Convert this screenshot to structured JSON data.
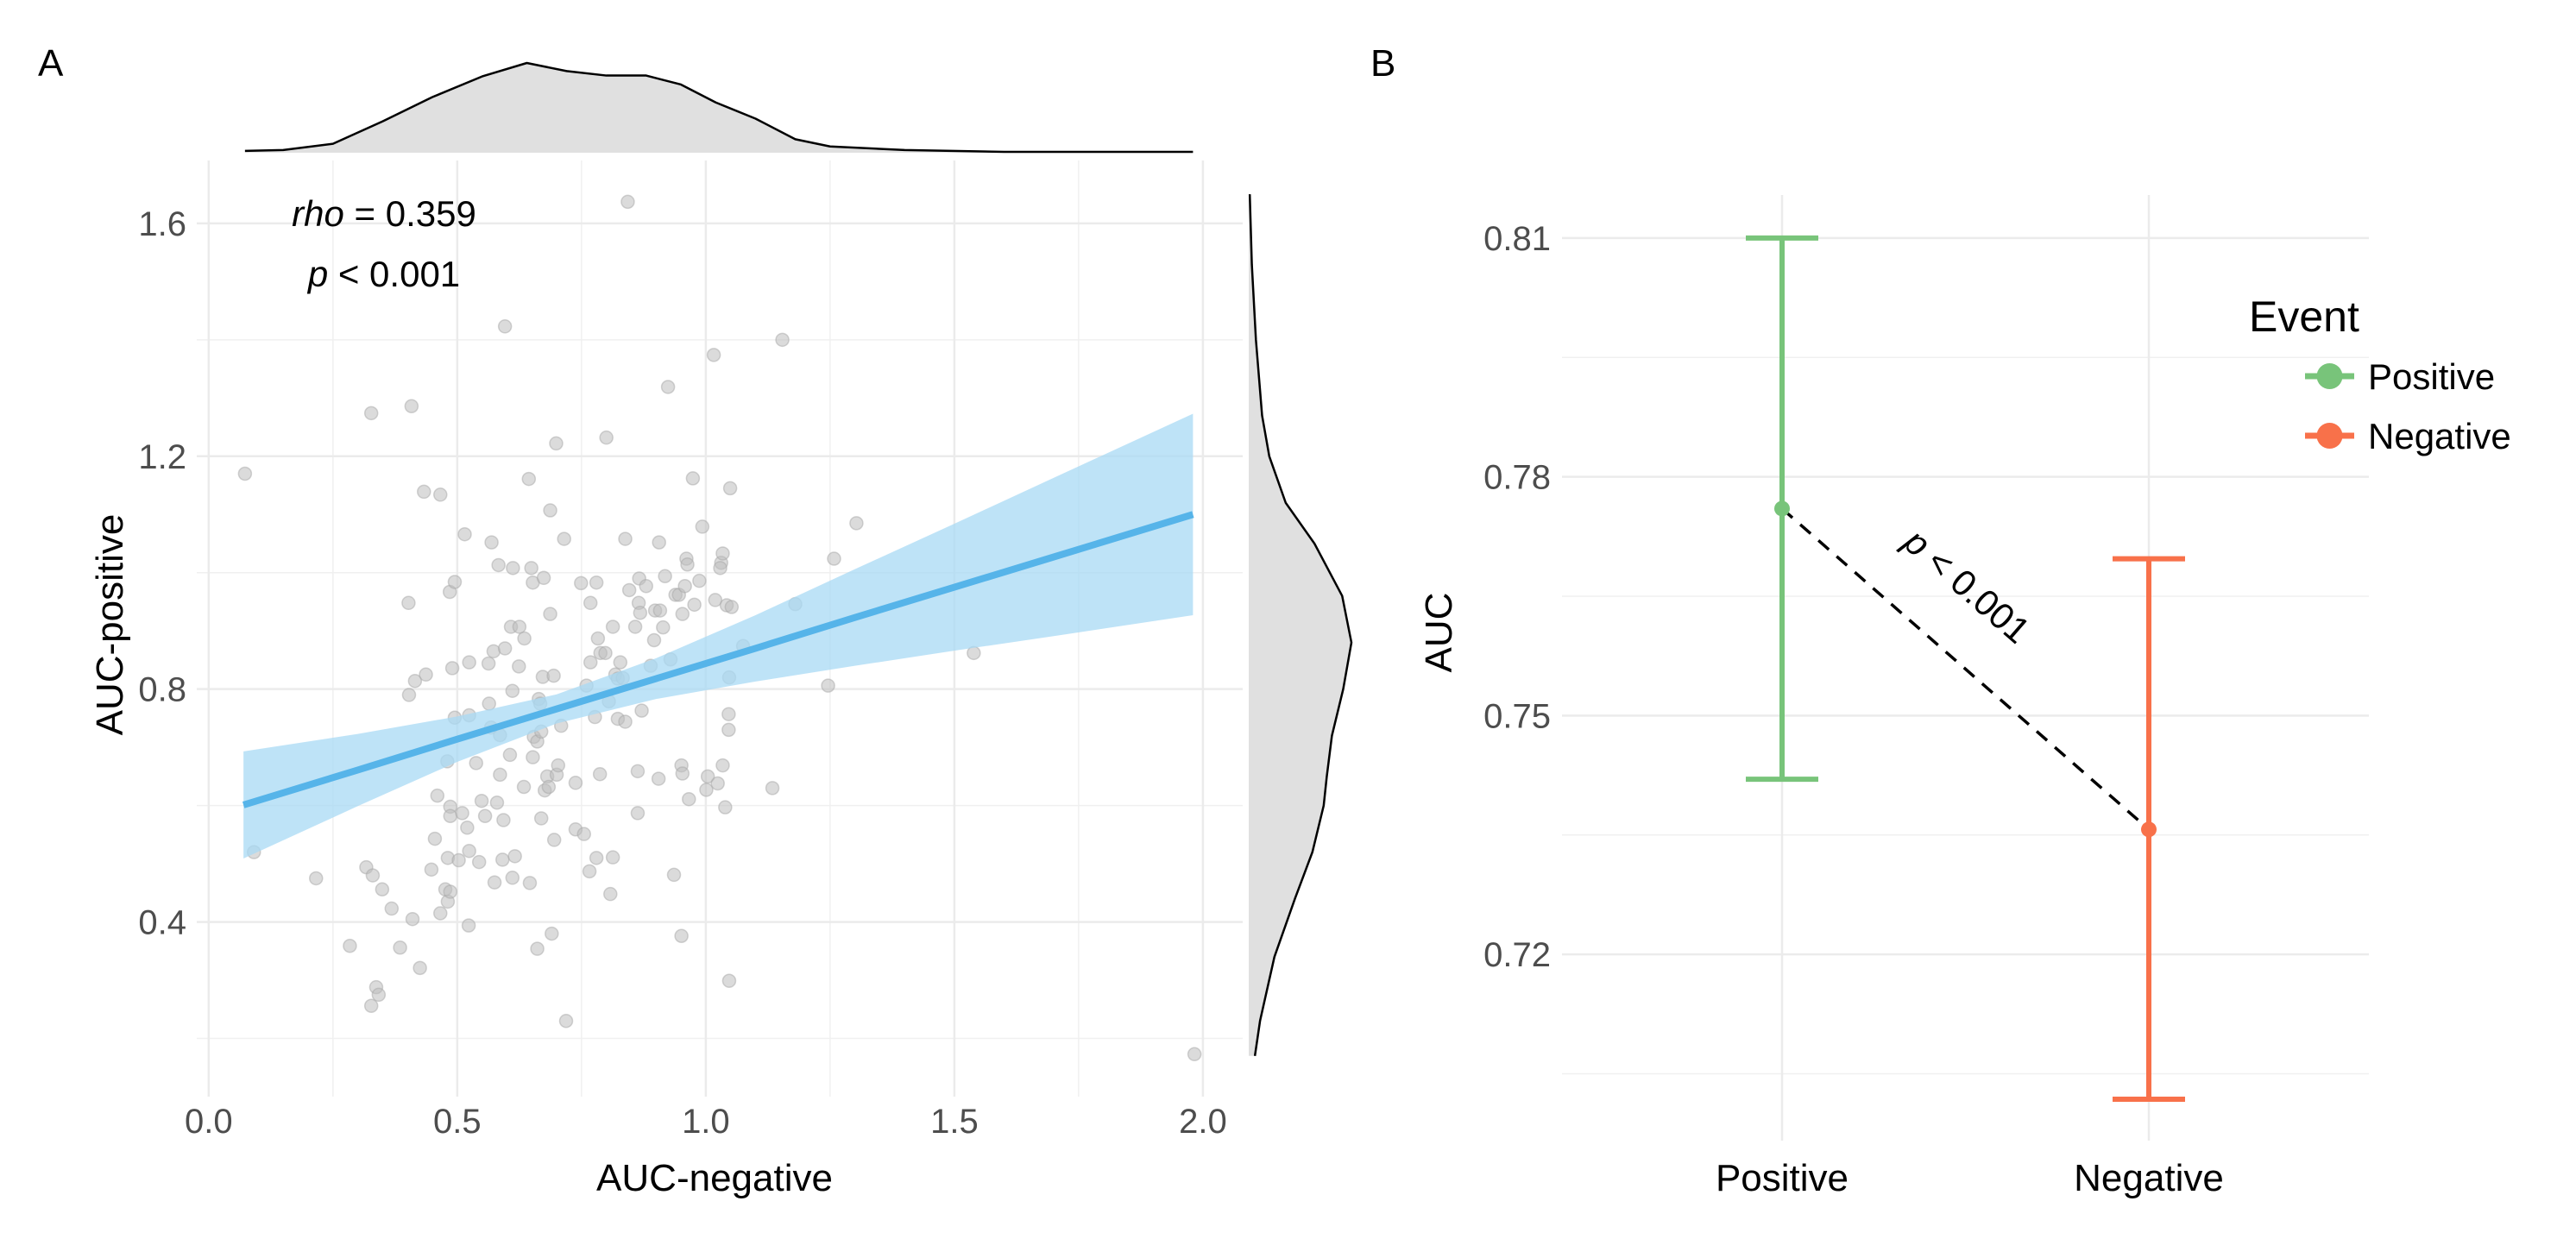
{
  "panels": {
    "a_label": "A",
    "b_label": "B"
  },
  "chart_data": [
    {
      "type": "scatter",
      "panel": "A",
      "xlabel": "AUC-negative",
      "ylabel": "AUC-positive",
      "xlim": [
        -0.024,
        2.08
      ],
      "ylim": [
        0.1,
        1.708
      ],
      "grid": true,
      "x_ticks": [
        0,
        0.5,
        1.0,
        1.5,
        2.0
      ],
      "x_tick_labels": [
        "0.0",
        "0.5",
        "1.0",
        "1.5",
        "2.0"
      ],
      "x_minor": [
        0.25,
        0.75,
        1.25,
        1.75
      ],
      "y_ticks": [
        0.4,
        0.8,
        1.2,
        1.6
      ],
      "y_tick_labels": [
        "0.4",
        "0.8",
        "1.2",
        "1.6"
      ],
      "y_minor": [
        0.2,
        0.6,
        1.0,
        1.4
      ],
      "annotation": {
        "stat_name": "rho",
        "stat_text": " = 0.359",
        "p_name": "p",
        "p_text": " < 0.001"
      },
      "colors": {
        "points": "#bdbdbd",
        "fit_line": "#56b4e9",
        "fit_band": "#a8d9f4",
        "density_fill": "#e0e0e0"
      },
      "points": [
        [
          0.073,
          1.17
        ],
        [
          0.091,
          0.52
        ],
        [
          0.216,
          0.475
        ],
        [
          0.284,
          0.359
        ],
        [
          0.317,
          0.494
        ],
        [
          0.33,
          0.48
        ],
        [
          0.327,
          0.256
        ],
        [
          0.337,
          0.288
        ],
        [
          0.342,
          0.275
        ],
        [
          0.349,
          0.456
        ],
        [
          0.368,
          0.423
        ],
        [
          0.385,
          0.356
        ],
        [
          0.41,
          0.405
        ],
        [
          0.425,
          0.321
        ],
        [
          0.327,
          1.274
        ],
        [
          0.408,
          1.286
        ],
        [
          0.433,
          1.139
        ],
        [
          0.466,
          1.134
        ],
        [
          0.402,
          0.948
        ],
        [
          0.403,
          0.79
        ],
        [
          0.415,
          0.814
        ],
        [
          0.437,
          0.825
        ],
        [
          0.46,
          0.617
        ],
        [
          0.455,
          0.543
        ],
        [
          0.448,
          0.49
        ],
        [
          0.466,
          0.415
        ],
        [
          0.481,
          0.51
        ],
        [
          0.476,
          0.456
        ],
        [
          0.481,
          0.435
        ],
        [
          0.486,
          0.452
        ],
        [
          0.486,
          0.598
        ],
        [
          0.486,
          0.582
        ],
        [
          0.48,
          0.676
        ],
        [
          0.49,
          0.836
        ],
        [
          0.485,
          0.967
        ],
        [
          0.495,
          0.984
        ],
        [
          0.495,
          0.751
        ],
        [
          0.503,
          0.506
        ],
        [
          0.51,
          0.587
        ],
        [
          0.52,
          0.562
        ],
        [
          0.524,
          0.522
        ],
        [
          0.523,
          0.394
        ],
        [
          0.515,
          1.066
        ],
        [
          0.524,
          0.846
        ],
        [
          0.524,
          0.755
        ],
        [
          0.538,
          0.673
        ],
        [
          0.549,
          0.608
        ],
        [
          0.544,
          0.503
        ],
        [
          0.556,
          0.582
        ],
        [
          0.564,
          0.775
        ],
        [
          0.568,
          0.734
        ],
        [
          0.563,
          0.844
        ],
        [
          0.573,
          0.865
        ],
        [
          0.569,
          1.052
        ],
        [
          0.575,
          0.468
        ],
        [
          0.58,
          0.605
        ],
        [
          0.586,
          0.653
        ],
        [
          0.583,
          1.013
        ],
        [
          0.586,
          0.721
        ],
        [
          0.593,
          0.575
        ],
        [
          0.591,
          0.507
        ],
        [
          0.596,
          1.423
        ],
        [
          0.596,
          0.87
        ],
        [
          0.608,
          0.907
        ],
        [
          0.611,
          0.797
        ],
        [
          0.616,
          0.513
        ],
        [
          0.606,
          0.687
        ],
        [
          0.611,
          0.476
        ],
        [
          0.612,
          1.008
        ],
        [
          0.625,
          0.907
        ],
        [
          0.624,
          0.839
        ],
        [
          0.634,
          0.632
        ],
        [
          0.635,
          0.887
        ],
        [
          0.644,
          1.161
        ],
        [
          0.649,
          1.008
        ],
        [
          0.652,
          0.983
        ],
        [
          0.646,
          0.467
        ],
        [
          0.652,
          0.683
        ],
        [
          0.654,
          0.718
        ],
        [
          0.661,
          0.71
        ],
        [
          0.661,
          0.354
        ],
        [
          0.664,
          0.783
        ],
        [
          0.669,
          0.578
        ],
        [
          0.667,
          0.775
        ],
        [
          0.669,
          0.727
        ],
        [
          0.672,
          0.821
        ],
        [
          0.674,
          0.991
        ],
        [
          0.676,
          0.626
        ],
        [
          0.681,
          0.65
        ],
        [
          0.684,
          0.632
        ],
        [
          0.687,
          0.929
        ],
        [
          0.687,
          1.107
        ],
        [
          0.69,
          0.38
        ],
        [
          0.694,
          0.823
        ],
        [
          0.695,
          0.541
        ],
        [
          0.699,
          1.222
        ],
        [
          0.7,
          0.653
        ],
        [
          0.703,
          0.669
        ],
        [
          0.709,
          0.737
        ],
        [
          0.715,
          1.058
        ],
        [
          0.719,
          0.23
        ],
        [
          0.738,
          0.639
        ],
        [
          0.738,
          0.559
        ],
        [
          0.755,
          0.551
        ],
        [
          0.749,
          0.982
        ],
        [
          0.76,
          0.806
        ],
        [
          0.766,
          0.487
        ],
        [
          0.768,
          0.948
        ],
        [
          0.768,
          0.846
        ],
        [
          0.777,
          0.752
        ],
        [
          0.78,
          0.983
        ],
        [
          0.783,
          0.887
        ],
        [
          0.787,
          0.654
        ],
        [
          0.78,
          0.51
        ],
        [
          0.788,
          0.862
        ],
        [
          0.798,
          0.862
        ],
        [
          0.8,
          1.232
        ],
        [
          0.805,
          0.779
        ],
        [
          0.808,
          0.448
        ],
        [
          0.813,
          0.511
        ],
        [
          0.813,
          0.907
        ],
        [
          0.818,
          0.825
        ],
        [
          0.823,
          0.749
        ],
        [
          0.823,
          0.818
        ],
        [
          0.828,
          0.846
        ],
        [
          0.833,
          0.819
        ],
        [
          0.838,
          0.744
        ],
        [
          0.838,
          1.058
        ],
        [
          0.843,
          1.637
        ],
        [
          0.846,
          0.97
        ],
        [
          0.858,
          0.907
        ],
        [
          0.863,
          0.659
        ],
        [
          0.863,
          0.587
        ],
        [
          0.865,
          0.948
        ],
        [
          0.866,
          0.99
        ],
        [
          0.868,
          0.931
        ],
        [
          0.871,
          0.763
        ],
        [
          0.88,
          0.977
        ],
        [
          0.889,
          0.84
        ],
        [
          0.896,
          0.884
        ],
        [
          0.898,
          0.935
        ],
        [
          0.905,
          0.646
        ],
        [
          0.906,
          1.052
        ],
        [
          0.908,
          0.935
        ],
        [
          0.914,
          0.906
        ],
        [
          0.918,
          0.994
        ],
        [
          0.924,
          1.319
        ],
        [
          0.929,
          0.851
        ],
        [
          0.936,
          0.481
        ],
        [
          0.939,
          0.962
        ],
        [
          0.946,
          0.962
        ],
        [
          0.951,
          0.669
        ],
        [
          0.953,
          0.655
        ],
        [
          0.951,
          0.376
        ],
        [
          0.953,
          0.929
        ],
        [
          0.958,
          0.977
        ],
        [
          0.961,
          1.024
        ],
        [
          0.963,
          1.014
        ],
        [
          0.966,
          0.611
        ],
        [
          0.974,
          1.162
        ],
        [
          0.977,
          0.945
        ],
        [
          0.987,
          0.986
        ],
        [
          0.993,
          1.079
        ],
        [
          1.001,
          0.627
        ],
        [
          1.004,
          0.65
        ],
        [
          1.016,
          1.374
        ],
        [
          1.019,
          0.953
        ],
        [
          1.024,
          0.638
        ],
        [
          1.031,
          1.017
        ],
        [
          1.034,
          1.033
        ],
        [
          1.034,
          0.669
        ],
        [
          1.029,
          1.008
        ],
        [
          1.039,
          0.597
        ],
        [
          1.042,
          0.944
        ],
        [
          1.046,
          0.757
        ],
        [
          1.046,
          0.73
        ],
        [
          1.047,
          0.82
        ],
        [
          1.047,
          0.299
        ],
        [
          1.049,
          1.145
        ],
        [
          1.052,
          0.941
        ],
        [
          1.075,
          0.874
        ],
        [
          1.134,
          0.63
        ],
        [
          1.154,
          1.4
        ],
        [
          1.18,
          0.946
        ],
        [
          1.246,
          0.806
        ],
        [
          1.258,
          1.024
        ],
        [
          1.303,
          1.085
        ],
        [
          1.539,
          0.862
        ],
        [
          1.983,
          0.173
        ]
      ],
      "fit": {
        "x": [
          0.07,
          0.3,
          0.5,
          0.7,
          0.9,
          1.1,
          1.3,
          1.5,
          1.7,
          1.98
        ],
        "y": [
          0.601,
          0.661,
          0.714,
          0.766,
          0.818,
          0.87,
          0.923,
          0.975,
          1.027,
          1.1
        ],
        "lower": [
          0.509,
          0.599,
          0.675,
          0.741,
          0.783,
          0.813,
          0.84,
          0.866,
          0.891,
          0.927
        ],
        "upper": [
          0.693,
          0.723,
          0.753,
          0.791,
          0.853,
          0.927,
          1.006,
          1.084,
          1.163,
          1.273
        ]
      },
      "marginal_x_density": {
        "x": [
          0.073,
          0.15,
          0.25,
          0.35,
          0.45,
          0.55,
          0.64,
          0.72,
          0.8,
          0.88,
          0.95,
          1.02,
          1.1,
          1.18,
          1.25,
          1.4,
          1.6,
          1.98
        ],
        "density": [
          0.02,
          0.03,
          0.1,
          0.35,
          0.62,
          0.85,
          1.0,
          0.91,
          0.86,
          0.86,
          0.76,
          0.56,
          0.38,
          0.15,
          0.07,
          0.03,
          0.01,
          0.01
        ]
      },
      "marginal_y_density": {
        "y": [
          1.65,
          1.53,
          1.4,
          1.27,
          1.2,
          1.12,
          1.05,
          0.96,
          0.88,
          0.8,
          0.72,
          0.65,
          0.6,
          0.52,
          0.44,
          0.34,
          0.23,
          0.17
        ],
        "density": [
          0.01,
          0.03,
          0.07,
          0.13,
          0.2,
          0.36,
          0.64,
          0.91,
          1.0,
          0.92,
          0.81,
          0.76,
          0.73,
          0.62,
          0.45,
          0.25,
          0.11,
          0.06
        ]
      }
    },
    {
      "type": "errorbar",
      "panel": "B",
      "xlabel": "",
      "ylabel": "AUC",
      "categories": [
        "Positive",
        "Negative"
      ],
      "values": [
        0.776,
        0.7357
      ],
      "lower": [
        0.742,
        0.7018
      ],
      "upper": [
        0.81,
        0.7697
      ],
      "ylim": [
        0.6966,
        0.8154
      ],
      "grid": true,
      "y_ticks": [
        0.72,
        0.75,
        0.78,
        0.81
      ],
      "y_tick_labels": [
        "0.72",
        "0.75",
        "0.78",
        "0.81"
      ],
      "y_minor": [
        0.705,
        0.735,
        0.765,
        0.795
      ],
      "colors": {
        "Positive": "#78c47a",
        "Negative": "#f8714a"
      },
      "legend": {
        "title": "Event",
        "position": "right",
        "entries": [
          "Positive",
          "Negative"
        ]
      },
      "annotation": {
        "p_name": "p",
        "p_text": " < 0.001"
      }
    }
  ]
}
